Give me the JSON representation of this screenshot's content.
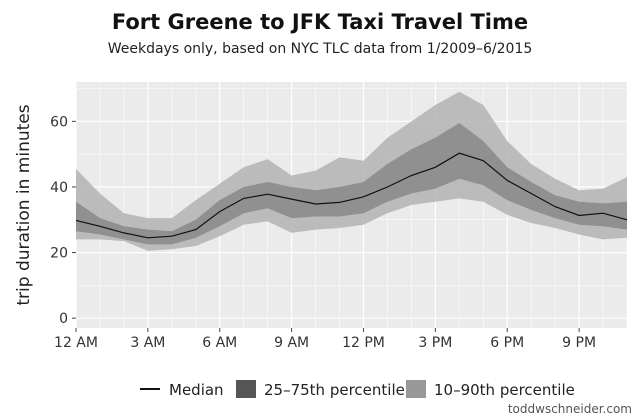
{
  "chart_data": {
    "type": "area",
    "title": "Fort Greene to JFK Taxi Travel Time",
    "subtitle": "Weekdays only, based on NYC TLC data from 1/2009–6/2015",
    "xlabel": "",
    "ylabel": "trip duration in minutes",
    "x": [
      0,
      1,
      2,
      3,
      4,
      5,
      6,
      7,
      8,
      9,
      10,
      11,
      12,
      13,
      14,
      15,
      16,
      17,
      18,
      19,
      20,
      21,
      22,
      23
    ],
    "x_unit": "hour of day",
    "xlim": [
      0,
      23
    ],
    "ylim": [
      -3,
      72
    ],
    "xticks": [
      {
        "value": 0,
        "label": "12 AM"
      },
      {
        "value": 3,
        "label": "3 AM"
      },
      {
        "value": 6,
        "label": "6 AM"
      },
      {
        "value": 9,
        "label": "9 AM"
      },
      {
        "value": 12,
        "label": "12 PM"
      },
      {
        "value": 15,
        "label": "3 PM"
      },
      {
        "value": 18,
        "label": "6 PM"
      },
      {
        "value": 21,
        "label": "9 PM"
      }
    ],
    "yticks": [
      0,
      20,
      40,
      60
    ],
    "grid": true,
    "legend_position": "bottom",
    "series": [
      {
        "name": "Median",
        "kind": "line",
        "color": "#111111",
        "values": [
          29.8,
          28.0,
          26.0,
          24.5,
          25.0,
          27.0,
          32.5,
          36.5,
          37.8,
          36.3,
          34.8,
          35.3,
          37.0,
          40.0,
          43.5,
          46.0,
          50.3,
          48.0,
          42.0,
          38.0,
          34.0,
          31.3,
          32.0,
          30.0
        ]
      },
      {
        "name": "25–75th percentile",
        "kind": "band",
        "color": "#555555",
        "lower": [
          26.5,
          25.5,
          24.0,
          22.5,
          22.5,
          24.5,
          28.0,
          32.0,
          33.5,
          30.5,
          31.0,
          31.0,
          32.0,
          35.5,
          38.0,
          39.5,
          42.5,
          40.5,
          36.0,
          33.0,
          30.5,
          28.5,
          28.0,
          27.0
        ],
        "upper": [
          35.5,
          30.5,
          28.0,
          27.0,
          26.5,
          30.0,
          36.0,
          40.0,
          41.5,
          40.0,
          39.0,
          40.0,
          41.5,
          47.0,
          51.5,
          55.0,
          59.5,
          54.0,
          46.0,
          41.5,
          37.5,
          35.5,
          35.0,
          35.5
        ]
      },
      {
        "name": "10–90th percentile",
        "kind": "band",
        "color": "#999999",
        "lower": [
          24.0,
          24.0,
          23.5,
          20.5,
          21.0,
          22.0,
          25.0,
          28.5,
          29.5,
          26.0,
          27.0,
          27.5,
          28.5,
          32.0,
          34.5,
          35.5,
          36.5,
          35.5,
          31.5,
          29.0,
          27.5,
          25.5,
          24.0,
          24.5
        ],
        "upper": [
          45.5,
          38.0,
          32.0,
          30.5,
          30.5,
          36.0,
          41.0,
          46.0,
          48.5,
          43.5,
          45.0,
          49.0,
          48.0,
          55.0,
          60.0,
          65.0,
          69.0,
          65.0,
          54.0,
          47.0,
          42.5,
          39.0,
          39.5,
          43.0
        ]
      }
    ]
  },
  "legend": {
    "median": "Median",
    "iqr": "25–75th percentile",
    "p10_90": "10–90th percentile"
  },
  "colors": {
    "panel_bg": "#ebebeb",
    "grid": "#ffffff",
    "outer_band": "#b3b3b3",
    "inner_band": "#888888",
    "median_line": "#111111"
  },
  "credit": "toddwschneider.com"
}
